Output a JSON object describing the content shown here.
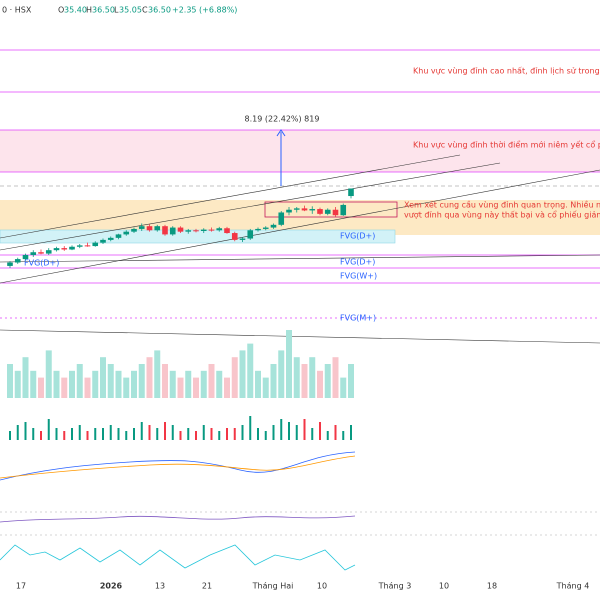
{
  "header": {
    "symbol": "0 · HSX",
    "open_label": "O",
    "open": "35.40",
    "high_label": "H",
    "high": "36.50",
    "low_label": "L",
    "low": "35.05",
    "close_label": "C",
    "close": "36.50",
    "change": "+2.35 (+6.88%)"
  },
  "annotations": {
    "zone_top": "Khu vực vùng đỉnh cao nhất, đỉnh lịch sử trong q",
    "zone_listing": "Khu vực vùng đỉnh thời điểm mới niêm yết cổ ph",
    "measure": "8.19 (22.42%) 819",
    "note_line1": "Xem xét cung cầu vùng đỉnh quan trọng. Nhiều nỗ",
    "note_line2": "vượt đỉnh qua vùng này thất bại và cổ phiếu giảm"
  },
  "fvg_labels": [
    "FVG(D+)",
    "FVG(D+)",
    "FVG(D+)",
    "FVG(W+)",
    "FVG(M+)"
  ],
  "x_labels": [
    "17",
    "2026",
    "13",
    "21",
    "Tháng Hai",
    "10",
    "Tháng 3",
    "10",
    "18",
    "Tháng 4"
  ],
  "chart_data": {
    "type": "candlestick",
    "ylim": [
      16,
      64
    ],
    "up_color": "#089981",
    "down_color": "#f23645",
    "candles": [
      [
        25.2,
        25.9,
        24.9,
        25.7
      ],
      [
        25.7,
        26.4,
        25.5,
        26.2
      ],
      [
        26.2,
        27.0,
        26.0,
        26.8
      ],
      [
        26.8,
        27.5,
        26.5,
        27.2
      ],
      [
        27.2,
        27.6,
        26.9,
        27.0
      ],
      [
        27.0,
        27.8,
        26.8,
        27.5
      ],
      [
        27.5,
        28.0,
        27.3,
        27.8
      ],
      [
        27.8,
        28.1,
        27.4,
        27.6
      ],
      [
        27.6,
        28.2,
        27.5,
        28.0
      ],
      [
        28.0,
        28.4,
        27.8,
        28.2
      ],
      [
        28.2,
        28.6,
        28.0,
        28.1
      ],
      [
        28.1,
        28.8,
        28.0,
        28.6
      ],
      [
        28.6,
        29.2,
        28.4,
        29.0
      ],
      [
        29.0,
        29.5,
        28.8,
        29.3
      ],
      [
        29.3,
        29.9,
        29.1,
        29.8
      ],
      [
        29.8,
        30.4,
        29.6,
        30.2
      ],
      [
        30.2,
        30.8,
        30.0,
        30.6
      ],
      [
        30.6,
        31.4,
        30.3,
        31.0
      ],
      [
        31.0,
        31.3,
        30.2,
        30.4
      ],
      [
        30.4,
        31.2,
        30.2,
        31.0
      ],
      [
        31.0,
        31.2,
        29.6,
        29.8
      ],
      [
        29.8,
        31.0,
        29.6,
        30.8
      ],
      [
        30.8,
        31.0,
        30.0,
        30.2
      ],
      [
        30.2,
        30.6,
        29.9,
        30.4
      ],
      [
        30.4,
        30.6,
        30.1,
        30.3
      ],
      [
        30.3,
        30.7,
        30.0,
        30.5
      ],
      [
        30.5,
        30.8,
        30.2,
        30.4
      ],
      [
        30.4,
        30.9,
        30.2,
        30.7
      ],
      [
        30.7,
        30.9,
        29.9,
        30.0
      ],
      [
        30.0,
        30.2,
        28.8,
        29.0
      ],
      [
        29.0,
        29.4,
        28.7,
        29.2
      ],
      [
        29.2,
        30.6,
        29.0,
        30.4
      ],
      [
        30.4,
        30.8,
        30.2,
        30.6
      ],
      [
        30.6,
        31.0,
        30.4,
        30.8
      ],
      [
        30.8,
        31.4,
        30.6,
        31.2
      ],
      [
        31.2,
        33.2,
        31.0,
        33.0
      ],
      [
        33.0,
        33.8,
        32.6,
        33.4
      ],
      [
        33.4,
        33.8,
        33.0,
        33.6
      ],
      [
        33.6,
        34.0,
        33.2,
        33.3
      ],
      [
        33.3,
        33.9,
        32.8,
        33.5
      ],
      [
        33.5,
        33.7,
        32.6,
        32.8
      ],
      [
        32.8,
        33.6,
        32.6,
        33.4
      ],
      [
        33.4,
        33.8,
        32.4,
        32.6
      ],
      [
        32.6,
        34.3,
        32.5,
        34.1
      ],
      [
        35.4,
        36.5,
        35.05,
        36.5
      ]
    ],
    "volume_lim": [
      0,
      10
    ],
    "volume": [
      5,
      4,
      6,
      4,
      3,
      7,
      4,
      3,
      4,
      5,
      3,
      4,
      6,
      5,
      4,
      3,
      4,
      5,
      6,
      7,
      5,
      4,
      3,
      4,
      3,
      4,
      5,
      4,
      3,
      6,
      7,
      8,
      4,
      3,
      5,
      7,
      10,
      6,
      5,
      6,
      4,
      5,
      6,
      3,
      5
    ],
    "momentum_lim": [
      0,
      10
    ],
    "momentum": [
      3,
      5,
      6,
      4,
      3,
      7,
      4,
      3,
      4,
      5,
      3,
      4,
      4,
      5,
      4,
      3,
      4,
      6,
      5,
      4,
      6,
      5,
      3,
      4,
      3,
      5,
      4,
      3,
      4,
      4,
      5,
      8,
      4,
      3,
      5,
      7,
      6,
      5,
      7,
      4,
      6,
      3,
      5,
      3,
      5
    ]
  }
}
